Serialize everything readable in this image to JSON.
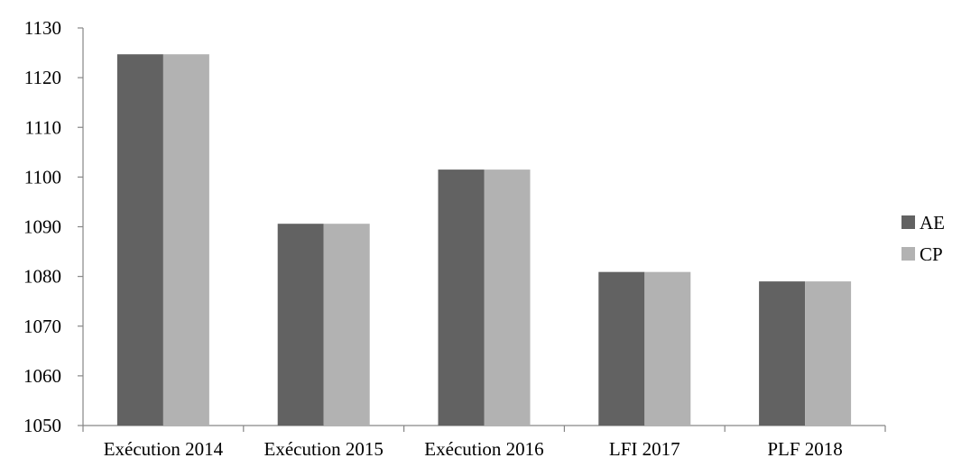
{
  "chart_data": {
    "type": "bar",
    "title": "",
    "xlabel": "",
    "ylabel": "",
    "categories": [
      "Exécution 2014",
      "Exécution 2015",
      "Exécution 2016",
      "LFI 2017",
      "PLF 2018"
    ],
    "series": [
      {
        "name": "AE",
        "color": "#626262",
        "values": [
          1124.7,
          1090.6,
          1101.5,
          1080.9,
          1079.0
        ]
      },
      {
        "name": "CP",
        "color": "#b2b2b2",
        "values": [
          1124.7,
          1090.6,
          1101.5,
          1080.9,
          1079.0
        ]
      }
    ],
    "ylim": [
      1050,
      1130
    ],
    "yticks": [
      "1050",
      "1060",
      "1070",
      "1080",
      "1090",
      "1100",
      "1110",
      "1120",
      "1130"
    ],
    "grid": false,
    "legend_position": "right"
  }
}
